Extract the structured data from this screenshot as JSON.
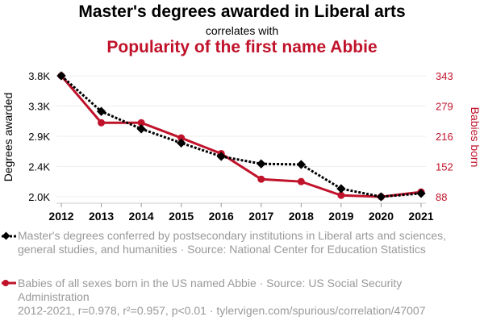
{
  "title": "Master's degrees awarded in Liberal arts",
  "subtitle": "correlates with",
  "title2": "Popularity of the first name Abbie",
  "chart_data": {
    "type": "line",
    "x": [
      2012,
      2013,
      2014,
      2015,
      2016,
      2017,
      2018,
      2019,
      2020,
      2021
    ],
    "series": [
      {
        "name": "Master's degrees conferred by postsecondary institutions in Liberal arts and sciences, general studies, and humanities · Source: National Center for Education Statistics",
        "axis": "left",
        "color": "#000000",
        "values": [
          3800,
          3270,
          3010,
          2800,
          2600,
          2490,
          2480,
          2120,
          2000,
          2050
        ]
      },
      {
        "name": "Babies of all sexes born in the US named Abbie · Source: US Social Security Administration",
        "axis": "right",
        "color": "#c0132b",
        "values": [
          343,
          244,
          244,
          212,
          179,
          125,
          120,
          91,
          88,
          98
        ]
      }
    ],
    "ylabel": "Degrees awarded",
    "y2label": "Babies born",
    "ylim": [
      2000,
      3800
    ],
    "y2lim": [
      88,
      343
    ],
    "yticks": [
      "3.8K",
      "3.3K",
      "2.9K",
      "2.4K",
      "2.0K"
    ],
    "y2ticks": [
      "343",
      "279",
      "216",
      "152",
      "88"
    ],
    "grid": true
  },
  "footer": "2012-2021, r=0.978, r²=0.957, p<0.01 · tylervigen.com/spurious/correlation/47007"
}
